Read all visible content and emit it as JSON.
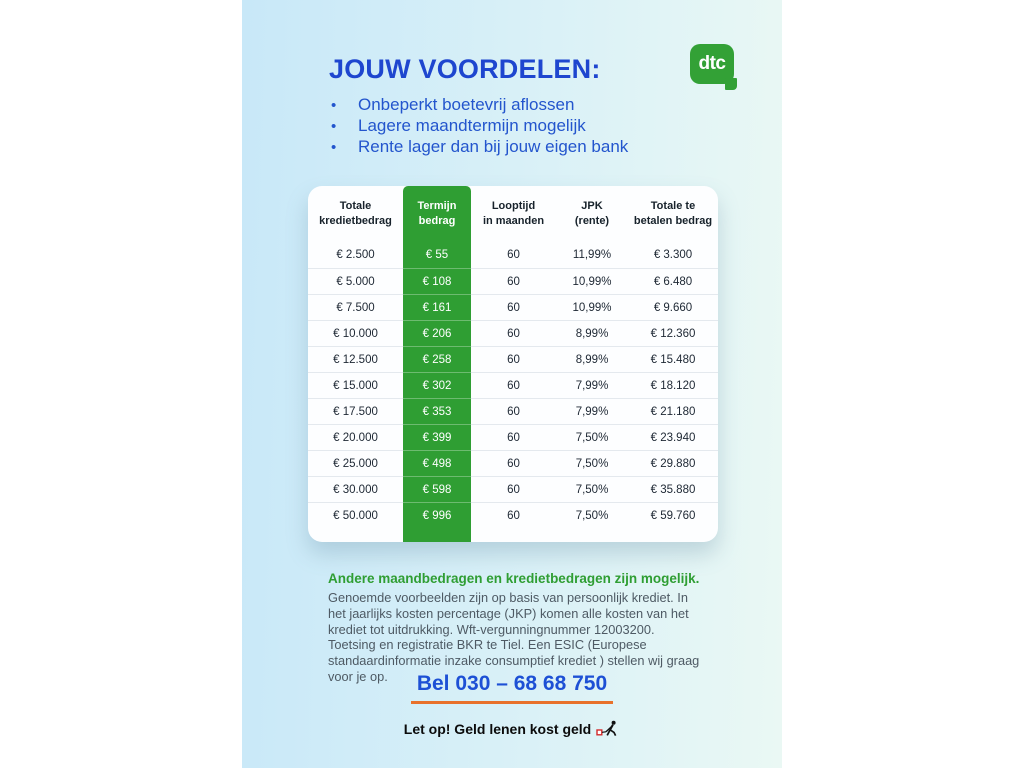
{
  "page": {
    "title": "JOUW VOORDELEN:",
    "bullet_char": "•",
    "bullets": [
      "Onbeperkt boetevrij aflossen",
      "Lagere maandtermijn mogelijk",
      "Rente lager dan bij jouw eigen bank"
    ],
    "logo_text": "dtc"
  },
  "table": {
    "columns": [
      {
        "lines": [
          "Totale",
          "kredietbedrag"
        ],
        "highlight": false
      },
      {
        "lines": [
          "Termijn",
          "bedrag"
        ],
        "highlight": true
      },
      {
        "lines": [
          "Looptijd",
          "in maanden"
        ],
        "highlight": false
      },
      {
        "lines": [
          "JPK",
          "(rente)"
        ],
        "highlight": false
      },
      {
        "lines": [
          "Totale te",
          "betalen bedrag"
        ],
        "highlight": false
      }
    ],
    "rows": [
      [
        "€ 2.500",
        "€ 55",
        "60",
        "11,99%",
        "€ 3.300"
      ],
      [
        "€ 5.000",
        "€ 108",
        "60",
        "10,99%",
        "€ 6.480"
      ],
      [
        "€ 7.500",
        "€ 161",
        "60",
        "10,99%",
        "€ 9.660"
      ],
      [
        "€ 10.000",
        "€ 206",
        "60",
        "8,99%",
        "€ 12.360"
      ],
      [
        "€ 12.500",
        "€ 258",
        "60",
        "8,99%",
        "€ 15.480"
      ],
      [
        "€ 15.000",
        "€ 302",
        "60",
        "7,99%",
        "€ 18.120"
      ],
      [
        "€ 17.500",
        "€ 353",
        "60",
        "7,99%",
        "€ 21.180"
      ],
      [
        "€ 20.000",
        "€ 399",
        "60",
        "7,50%",
        "€ 23.940"
      ],
      [
        "€ 25.000",
        "€ 498",
        "60",
        "7,50%",
        "€ 29.880"
      ],
      [
        "€ 30.000",
        "€ 598",
        "60",
        "7,50%",
        "€ 35.880"
      ],
      [
        "€ 50.000",
        "€ 996",
        "60",
        "7,50%",
        "€ 59.760"
      ]
    ]
  },
  "footer": {
    "highlight": "Andere maandbedragen en kredietbedragen zijn mogelijk.",
    "disclaimer": "Genoemde voorbeelden zijn op basis van persoonlijk krediet. In het jaarlijks kosten percentage (JKP) komen alle kosten van het krediet tot uitdrukking. Wft-vergunningnummer 12003200. Toetsing en registratie BKR te Tiel. Een ESIC (Europese standaardinformatie inzake consumptief krediet ) stellen wij graag voor je op.",
    "phone": "Bel 030 – 68 68 750",
    "warning": "Let op! Geld lenen kost geld"
  },
  "colors": {
    "accent_green": "#2f9e33",
    "accent_blue": "#1e46cf",
    "underline_orange": "#e8712b",
    "panel_gradient_left": "#c8e8f8",
    "panel_gradient_right": "#eaf8f4",
    "warning_red": "#d22b2b"
  }
}
